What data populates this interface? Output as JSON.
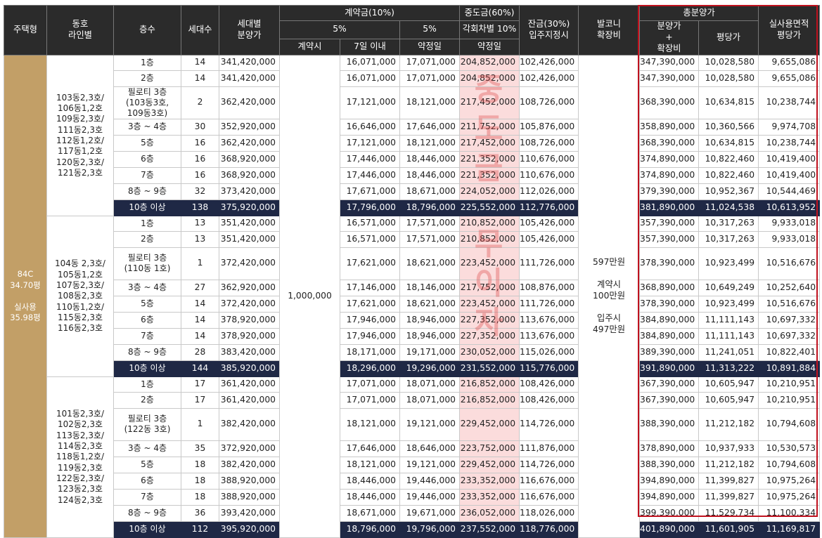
{
  "header": {
    "type": "주택형",
    "line": "동호\n라인별",
    "floor": "층수",
    "units": "세대수",
    "price": "세대별\n분양가",
    "contract": "계약금(10%)",
    "middle": "중도금(60%)",
    "balance": "잔금(30%)\n입주지정시",
    "balcony": "발코니\n확장비",
    "total": "총분양가",
    "realarea": "실사용면적\n평당가",
    "pct5a": "5%",
    "pct5b": "5%",
    "diff": "각회차별 10%",
    "total_price": "분양가\n+\n확장비",
    "ppyeong": "평당가",
    "c_at": "계약시",
    "c_7days": "7일 이내",
    "c_date1": "약정일",
    "m_date": "약정일"
  },
  "type_label": "84C\n34.70평\n\n실사용\n35.98평",
  "contract_at": "1,000,000",
  "balcony_text": "597만원\n\n계약시\n100만원\n\n입주시\n497만원",
  "watermark": [
    "중",
    "도",
    "금",
    "무",
    "이",
    "자"
  ],
  "groups": [
    {
      "lines": "103동2,3호/\n106동1,2호\n109동2,3호/\n111동2,3호\n112동1,2호/\n117동1,2호\n120동2,3호/\n121동2,3호",
      "rows": [
        {
          "floor": "1층",
          "units": "14",
          "price": "341,420,000",
          "c7": "16,071,000",
          "cd": "17,071,000",
          "mid": "204,852,000",
          "bal": "102,426,000",
          "total": "347,390,000",
          "pp": "10,028,580",
          "real": "9,655,086"
        },
        {
          "floor": "2층",
          "units": "14",
          "price": "341,420,000",
          "c7": "16,071,000",
          "cd": "17,071,000",
          "mid": "204,852,000",
          "bal": "102,426,000",
          "total": "347,390,000",
          "pp": "10,028,580",
          "real": "9,655,086"
        },
        {
          "floor": "필로티 3층\n(103동3호,\n109동3호)",
          "units": "2",
          "price": "362,420,000",
          "c7": "17,121,000",
          "cd": "18,121,000",
          "mid": "217,452,000",
          "bal": "108,726,000",
          "total": "368,390,000",
          "pp": "10,634,815",
          "real": "10,238,744"
        },
        {
          "floor": "3층 ~ 4층",
          "units": "30",
          "price": "352,920,000",
          "c7": "16,646,000",
          "cd": "17,646,000",
          "mid": "211,752,000",
          "bal": "105,876,000",
          "total": "358,890,000",
          "pp": "10,360,566",
          "real": "9,974,708"
        },
        {
          "floor": "5층",
          "units": "16",
          "price": "362,420,000",
          "c7": "17,121,000",
          "cd": "18,121,000",
          "mid": "217,452,000",
          "bal": "108,726,000",
          "total": "368,390,000",
          "pp": "10,634,815",
          "real": "10,238,744"
        },
        {
          "floor": "6층",
          "units": "16",
          "price": "368,920,000",
          "c7": "17,446,000",
          "cd": "18,446,000",
          "mid": "221,352,000",
          "bal": "110,676,000",
          "total": "374,890,000",
          "pp": "10,822,460",
          "real": "10,419,400"
        },
        {
          "floor": "7층",
          "units": "16",
          "price": "368,920,000",
          "c7": "17,446,000",
          "cd": "18,446,000",
          "mid": "221,352,000",
          "bal": "110,676,000",
          "total": "374,890,000",
          "pp": "10,822,460",
          "real": "10,419,400"
        },
        {
          "floor": "8층 ~ 9층",
          "units": "32",
          "price": "373,420,000",
          "c7": "17,671,000",
          "cd": "18,671,000",
          "mid": "224,052,000",
          "bal": "112,026,000",
          "total": "379,390,000",
          "pp": "10,952,367",
          "real": "10,544,469"
        },
        {
          "floor": "10층 이상",
          "units": "138",
          "price": "375,920,000",
          "c7": "17,796,000",
          "cd": "18,796,000",
          "mid": "225,552,000",
          "bal": "112,776,000",
          "total": "381,890,000",
          "pp": "11,024,538",
          "real": "10,613,952",
          "sum": true
        }
      ]
    },
    {
      "lines": "104동 2,3호/\n105동1,2호\n107동2,3호/\n108동2,3호\n110동1,2호/\n115동2,3호\n116동2,3호",
      "rows": [
        {
          "floor": "1층",
          "units": "13",
          "price": "351,420,000",
          "c7": "16,571,000",
          "cd": "17,571,000",
          "mid": "210,852,000",
          "bal": "105,426,000",
          "total": "357,390,000",
          "pp": "10,317,263",
          "real": "9,933,018"
        },
        {
          "floor": "2층",
          "units": "13",
          "price": "351,420,000",
          "c7": "16,571,000",
          "cd": "17,571,000",
          "mid": "210,852,000",
          "bal": "105,426,000",
          "total": "357,390,000",
          "pp": "10,317,263",
          "real": "9,933,018"
        },
        {
          "floor": "필로티 3층\n(110동 1호)",
          "units": "1",
          "price": "372,420,000",
          "c7": "17,621,000",
          "cd": "18,621,000",
          "mid": "223,452,000",
          "bal": "111,726,000",
          "total": "378,390,000",
          "pp": "10,923,499",
          "real": "10,516,676"
        },
        {
          "floor": "3층 ~ 4층",
          "units": "27",
          "price": "362,920,000",
          "c7": "17,146,000",
          "cd": "18,146,000",
          "mid": "217,752,000",
          "bal": "108,876,000",
          "total": "368,890,000",
          "pp": "10,649,249",
          "real": "10,252,640"
        },
        {
          "floor": "5층",
          "units": "14",
          "price": "372,420,000",
          "c7": "17,621,000",
          "cd": "18,621,000",
          "mid": "223,452,000",
          "bal": "111,726,000",
          "total": "378,390,000",
          "pp": "10,923,499",
          "real": "10,516,676"
        },
        {
          "floor": "6층",
          "units": "14",
          "price": "378,920,000",
          "c7": "17,946,000",
          "cd": "18,946,000",
          "mid": "227,352,000",
          "bal": "113,676,000",
          "total": "384,890,000",
          "pp": "11,111,143",
          "real": "10,697,332"
        },
        {
          "floor": "7층",
          "units": "14",
          "price": "378,920,000",
          "c7": "17,946,000",
          "cd": "18,946,000",
          "mid": "227,352,000",
          "bal": "113,676,000",
          "total": "384,890,000",
          "pp": "11,111,143",
          "real": "10,697,332"
        },
        {
          "floor": "8층 ~ 9층",
          "units": "28",
          "price": "383,420,000",
          "c7": "18,171,000",
          "cd": "19,171,000",
          "mid": "230,052,000",
          "bal": "115,026,000",
          "total": "389,390,000",
          "pp": "11,241,051",
          "real": "10,822,401"
        },
        {
          "floor": "10층 이상",
          "units": "144",
          "price": "385,920,000",
          "c7": "18,296,000",
          "cd": "19,296,000",
          "mid": "231,552,000",
          "bal": "115,776,000",
          "total": "391,890,000",
          "pp": "11,313,222",
          "real": "10,891,884",
          "sum": true
        }
      ]
    },
    {
      "lines": "101동2,3호/\n102동2,3호\n113동2,3호/\n114동2,3호\n118동1,2호/\n119동2,3호\n122동2,3호/\n123동2,3호\n124동2,3호",
      "rows": [
        {
          "floor": "1층",
          "units": "17",
          "price": "361,420,000",
          "c7": "17,071,000",
          "cd": "18,071,000",
          "mid": "216,852,000",
          "bal": "108,426,000",
          "total": "367,390,000",
          "pp": "10,605,947",
          "real": "10,210,951"
        },
        {
          "floor": "2층",
          "units": "17",
          "price": "361,420,000",
          "c7": "17,071,000",
          "cd": "18,071,000",
          "mid": "216,852,000",
          "bal": "108,426,000",
          "total": "367,390,000",
          "pp": "10,605,947",
          "real": "10,210,951"
        },
        {
          "floor": "필로티 3층\n(122동 3호)",
          "units": "1",
          "price": "382,420,000",
          "c7": "18,121,000",
          "cd": "19,121,000",
          "mid": "229,452,000",
          "bal": "114,726,000",
          "total": "388,390,000",
          "pp": "11,212,182",
          "real": "10,794,608"
        },
        {
          "floor": "3층 ~ 4층",
          "units": "35",
          "price": "372,920,000",
          "c7": "17,646,000",
          "cd": "18,646,000",
          "mid": "223,752,000",
          "bal": "111,876,000",
          "total": "378,890,000",
          "pp": "10,937,933",
          "real": "10,530,573"
        },
        {
          "floor": "5층",
          "units": "18",
          "price": "382,420,000",
          "c7": "18,121,000",
          "cd": "19,121,000",
          "mid": "229,452,000",
          "bal": "114,726,000",
          "total": "388,390,000",
          "pp": "11,212,182",
          "real": "10,794,608"
        },
        {
          "floor": "6층",
          "units": "18",
          "price": "388,920,000",
          "c7": "18,446,000",
          "cd": "19,446,000",
          "mid": "233,352,000",
          "bal": "116,676,000",
          "total": "394,890,000",
          "pp": "11,399,827",
          "real": "10,975,264"
        },
        {
          "floor": "7층",
          "units": "18",
          "price": "388,920,000",
          "c7": "18,446,000",
          "cd": "19,446,000",
          "mid": "233,352,000",
          "bal": "116,676,000",
          "total": "394,890,000",
          "pp": "11,399,827",
          "real": "10,975,264"
        },
        {
          "floor": "8층 ~ 9층",
          "units": "36",
          "price": "393,420,000",
          "c7": "18,671,000",
          "cd": "19,671,000",
          "mid": "236,052,000",
          "bal": "118,026,000",
          "total": "399,390,000",
          "pp": "11,529,734",
          "real": "11,100,334"
        },
        {
          "floor": "10층 이상",
          "units": "112",
          "price": "395,920,000",
          "c7": "18,796,000",
          "cd": "19,796,000",
          "mid": "237,552,000",
          "bal": "118,776,000",
          "total": "401,890,000",
          "pp": "11,601,905",
          "real": "11,169,817",
          "sum": true
        }
      ]
    }
  ]
}
